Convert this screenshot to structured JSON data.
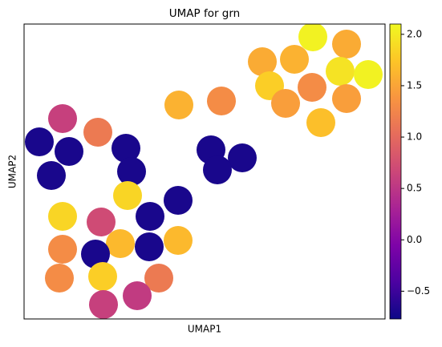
{
  "chart_data": {
    "type": "scatter",
    "title": "UMAP for grn",
    "x_label": "UMAP1",
    "y_label": "UMAP2",
    "colormap": "plasma",
    "x": [
      360,
      402,
      297,
      337,
      394,
      429,
      306,
      359,
      326,
      402,
      370,
      193,
      246,
      48,
      92,
      19,
      56,
      127,
      34,
      134,
      233,
      272,
      241,
      129,
      192,
      48,
      96,
      157,
      48,
      120,
      89,
      156,
      192,
      44,
      98,
      168,
      99,
      141
    ],
    "y": [
      352,
      343,
      321,
      324,
      309,
      305,
      291,
      289,
      269,
      275,
      245,
      267,
      272,
      250,
      233,
      221,
      209,
      213,
      179,
      184,
      211,
      201,
      186,
      154,
      148,
      128,
      121,
      128,
      87,
      94,
      81,
      90,
      98,
      51,
      53,
      51,
      18,
      29
    ],
    "values": [
      2.05,
      1.55,
      1.55,
      1.6,
      1.95,
      2.05,
      1.8,
      1.3,
      1.45,
      1.45,
      1.7,
      1.6,
      1.3,
      0.6,
      1.15,
      -0.7,
      -0.7,
      -0.7,
      -0.7,
      -0.7,
      -0.7,
      -0.7,
      -0.7,
      1.85,
      -0.7,
      1.85,
      0.7,
      -0.7,
      1.3,
      1.65,
      -0.7,
      -0.7,
      1.65,
      1.3,
      1.8,
      1.15,
      0.6,
      0.55
    ],
    "xlim": [
      0,
      450
    ],
    "ylim": [
      0,
      368
    ],
    "clim": [
      -0.77,
      2.1
    ],
    "cticks": [
      {
        "value": -0.5,
        "label": "−0.5"
      },
      {
        "value": 0,
        "label": "0.0"
      },
      {
        "value": 0.5,
        "label": "0.5"
      },
      {
        "value": 1,
        "label": "1.0"
      },
      {
        "value": 1.5,
        "label": "1.5"
      },
      {
        "value": 2,
        "label": "2.0"
      }
    ]
  }
}
